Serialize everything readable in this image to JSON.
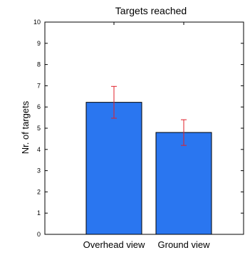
{
  "chart_data": {
    "type": "bar",
    "title": "Targets reached",
    "xlabel": "",
    "ylabel": "Nr. of targets",
    "categories": [
      "Overhead view",
      "Ground view"
    ],
    "values": [
      6.22,
      4.8
    ],
    "error_low": [
      5.47,
      4.19
    ],
    "error_high": [
      6.97,
      5.4
    ],
    "ylim": [
      0,
      10
    ],
    "yticks": [
      0,
      1,
      2,
      3,
      4,
      5,
      6,
      7,
      8,
      9,
      10
    ],
    "grid": false,
    "colors": {
      "bar_fill": "#2a76f0",
      "bar_edge": "#000000",
      "error_bar": "#e0202a",
      "axis": "#000000"
    }
  }
}
